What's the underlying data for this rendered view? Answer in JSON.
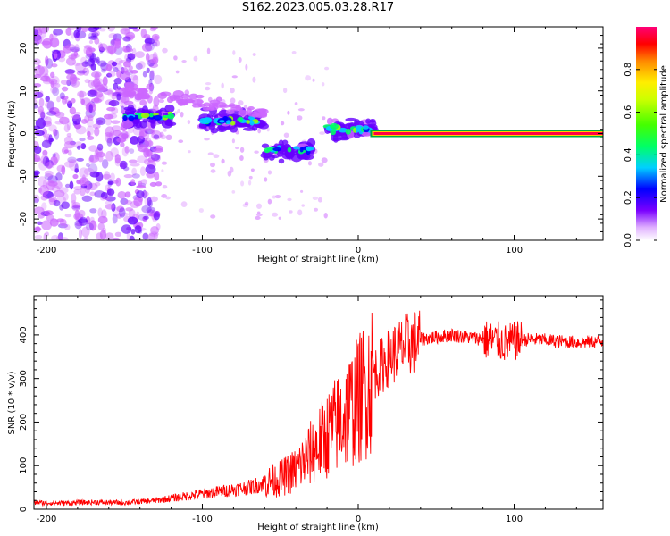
{
  "title": "S162.2023.005.03.28.R17",
  "chart_data": [
    {
      "type": "heatmap",
      "xlabel": "Height of straight line (km)",
      "ylabel": "Frequency (Hz)",
      "xlim": [
        -208,
        157
      ],
      "ylim": [
        -25,
        25
      ],
      "x_ticks": [
        -200,
        -100,
        0,
        100
      ],
      "y_ticks": [
        -20,
        -10,
        0,
        10,
        20
      ],
      "colorbar": {
        "label": "Normalized spectral amplitude",
        "range": [
          0,
          1
        ],
        "ticks": [
          "0.0",
          "0.2",
          "0.4",
          "0.6",
          "0.8"
        ],
        "colors": [
          "#ffffff",
          "#cc66ff",
          "#6600ff",
          "#0000ff",
          "#00ccff",
          "#00ff66",
          "#99ff00",
          "#ffee00",
          "#ff8800",
          "#ff0000",
          "#ff0066"
        ]
      },
      "features": [
        {
          "x": [
            10,
            157
          ],
          "freq": 0,
          "amplitude": 1.0,
          "desc": "carrier"
        },
        {
          "x": [
            -150,
            -120
          ],
          "freq": 4,
          "amplitude": 0.5
        },
        {
          "x": [
            -100,
            -60
          ],
          "freq": 3,
          "amplitude": 0.5
        },
        {
          "x": [
            -60,
            -30
          ],
          "freq": -4,
          "amplitude": 0.4
        },
        {
          "x": [
            -20,
            10
          ],
          "freq": 1,
          "amplitude": 0.6
        }
      ]
    },
    {
      "type": "line",
      "xlabel": "Height of straight line (km)",
      "ylabel": "SNR (10 * v/v)",
      "xlim": [
        -208,
        157
      ],
      "ylim": [
        0,
        490
      ],
      "x_ticks": [
        -200,
        -100,
        0,
        100
      ],
      "y_ticks": [
        0,
        100,
        200,
        300,
        400
      ],
      "color": "#ff0000",
      "series": [
        {
          "name": "SNR",
          "x": [
            -208,
            -190,
            -170,
            -150,
            -130,
            -120,
            -110,
            -100,
            -90,
            -80,
            -70,
            -60,
            -50,
            -40,
            -35,
            -30,
            -25,
            -20,
            -15,
            -10,
            -5,
            0,
            5,
            10,
            15,
            20,
            30,
            40,
            50,
            60,
            70,
            80,
            90,
            95,
            100,
            110,
            120,
            130,
            140,
            157
          ],
          "y": [
            15,
            14,
            16,
            15,
            20,
            25,
            30,
            35,
            40,
            45,
            50,
            60,
            70,
            90,
            110,
            130,
            150,
            170,
            190,
            210,
            230,
            250,
            280,
            310,
            330,
            350,
            375,
            390,
            395,
            400,
            395,
            390,
            385,
            380,
            385,
            390,
            388,
            385,
            383,
            385
          ]
        }
      ]
    }
  ]
}
